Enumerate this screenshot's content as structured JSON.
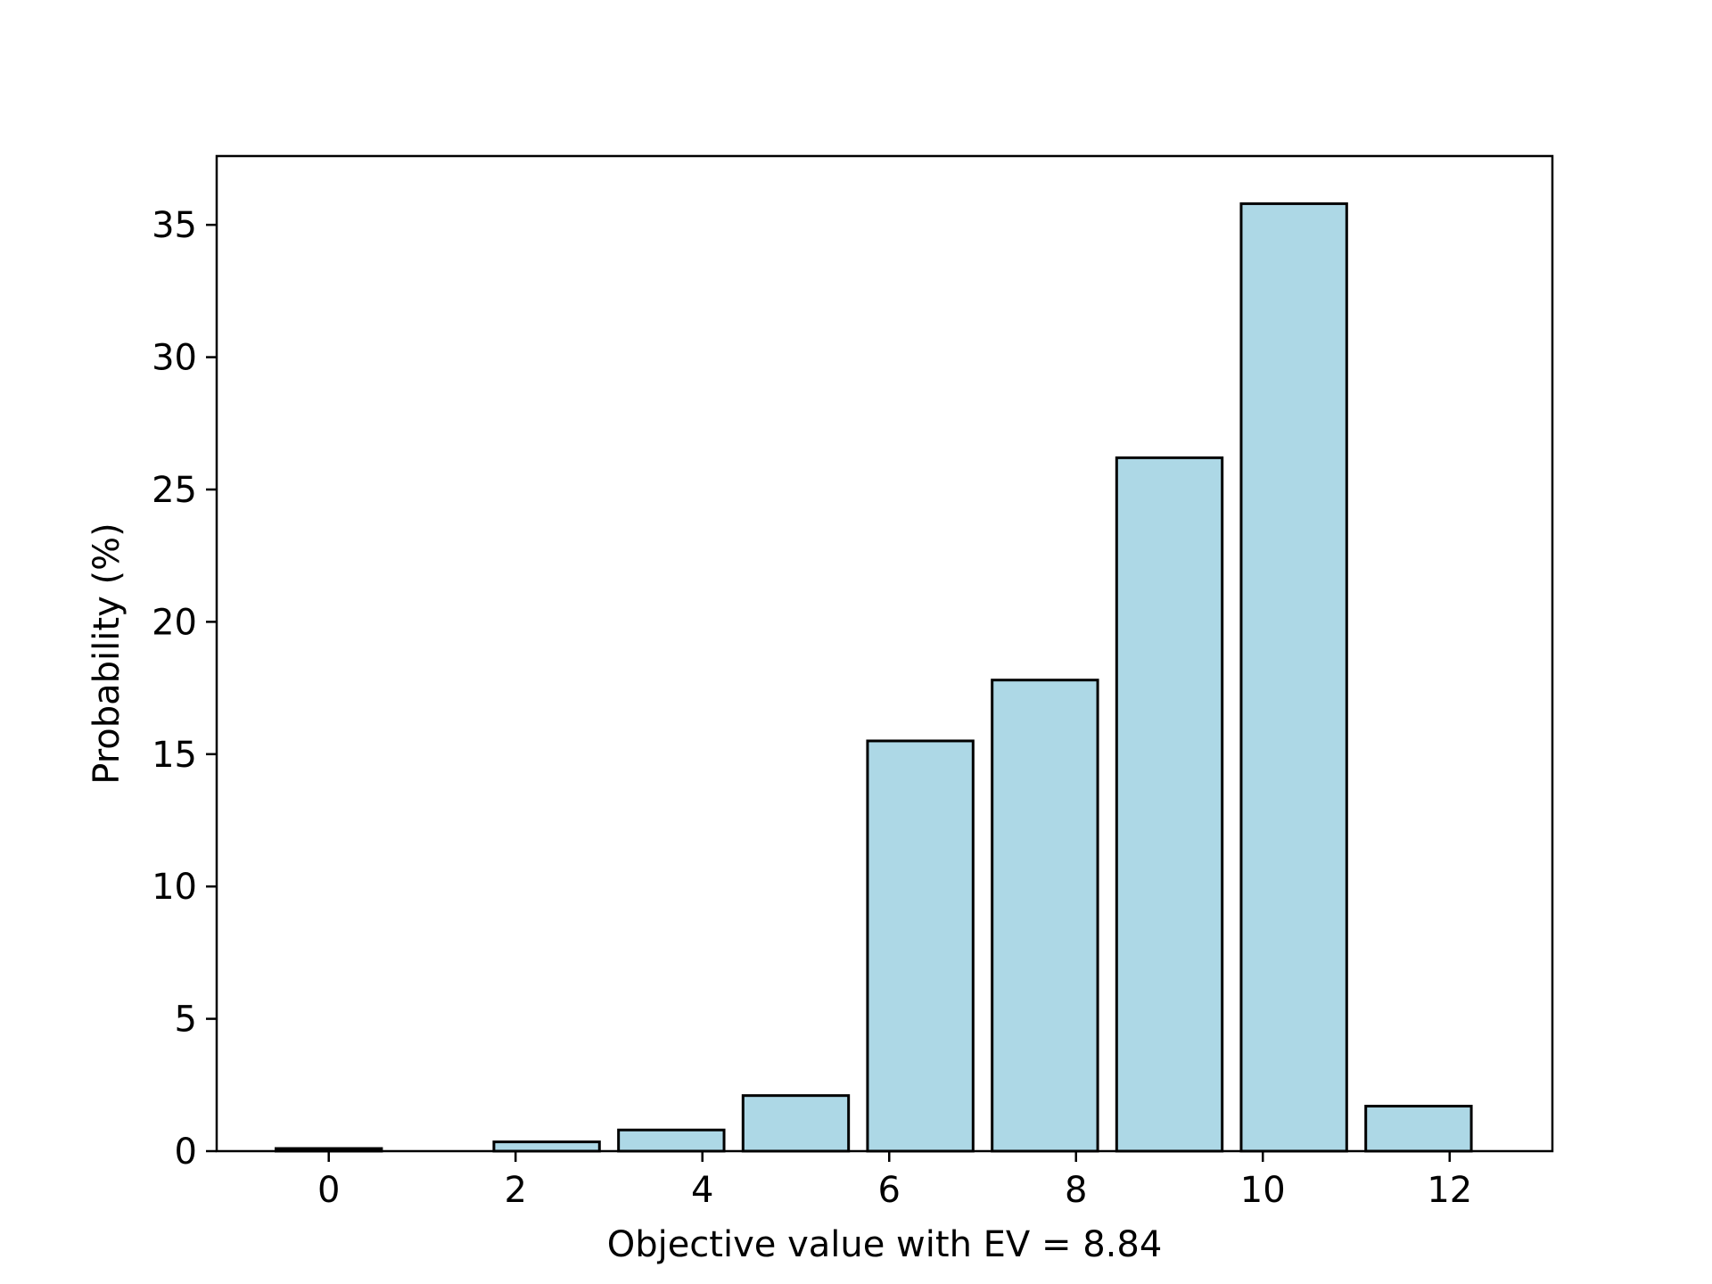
{
  "chart_data": {
    "type": "bar",
    "title": "",
    "xlabel": "Objective value with EV = 8.84",
    "ylabel": "Probability (%)",
    "x": [
      0,
      1,
      2,
      3,
      4,
      5,
      6,
      7,
      8,
      9,
      10,
      11,
      12
    ],
    "values": [
      0.1,
      0,
      0,
      0.35,
      0.8,
      2.1,
      15.5,
      17.8,
      26.2,
      35.8,
      1.7,
      null,
      null
    ],
    "bars": [
      {
        "x": 0,
        "value": 0.1
      },
      {
        "x": 2.333,
        "value": 0.35
      },
      {
        "x": 3.667,
        "value": 0.8
      },
      {
        "x": 5.0,
        "value": 2.1
      },
      {
        "x": 6.333,
        "value": 15.5
      },
      {
        "x": 7.667,
        "value": 17.8
      },
      {
        "x": 9.0,
        "value": 26.2
      },
      {
        "x": 10.333,
        "value": 35.8
      },
      {
        "x": 11.667,
        "value": 1.7
      }
    ],
    "bar_width": 1.13,
    "xlim": [
      -1.2,
      13.1
    ],
    "ylim": [
      0,
      37.6
    ],
    "xticks": [
      0,
      2,
      4,
      6,
      8,
      10,
      12
    ],
    "yticks": [
      0,
      5,
      10,
      15,
      20,
      25,
      30,
      35
    ],
    "bar_color": "#add8e6",
    "edge_color": "#000000",
    "grid": false,
    "legend": "none"
  }
}
